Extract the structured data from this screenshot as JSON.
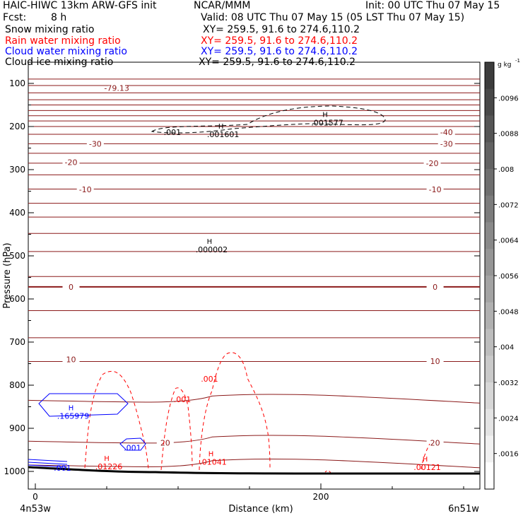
{
  "header": {
    "title_left": "HAIC-HIWC 13km ARW-GFS init",
    "title_center": "NCAR/MMM",
    "init": "Init: 00 UTC Thu 07 May 15",
    "fcst_label": "Fcst:",
    "fcst_value": "8 h",
    "valid": "Valid: 08 UTC Thu 07 May 15 (05 LST Thu 07 May 15)"
  },
  "fields": [
    {
      "name": "Snow mixing ratio",
      "xy": "XY= 259.5, 91.6 to 274.6,110.2",
      "color": "#000000"
    },
    {
      "name": "Rain water mixing ratio",
      "xy": "XY= 259.5, 91.6 to 274.6,110.2",
      "color": "#ff0000"
    },
    {
      "name": "Cloud water mixing ratio",
      "xy": "XY= 259.5, 91.6 to 274.6,110.2",
      "color": "#0000ff"
    },
    {
      "name": "Cloud ice mixing ratio",
      "xy": "XY= 259.5, 91.6 to 274.6,110.2",
      "color": "#000000"
    }
  ],
  "chart_data": {
    "type": "contour",
    "xlabel": "Distance (km)",
    "ylabel": "Pressure (hPa)",
    "x_range": [
      0,
      310
    ],
    "y_range": [
      50,
      1050
    ],
    "x_ticks": [
      0,
      200
    ],
    "y_ticks": [
      100,
      200,
      300,
      400,
      500,
      600,
      700,
      800,
      900,
      1000
    ],
    "left_end_label": "4n53w",
    "right_end_label": "6n51w",
    "colorbar": {
      "unit": "g kg",
      "unit_exponent": "-1",
      "tick_labels": [
        ".0096",
        ".0088",
        ".008",
        ".0072",
        ".0064",
        ".0056",
        ".0048",
        ".004",
        ".0032",
        ".0024",
        ".0016"
      ],
      "colors": [
        "#3c3c3c",
        "#484848",
        "#555555",
        "#626262",
        "#6f6f6f",
        "#7c7c7c",
        "#898989",
        "#969696",
        "#a3a3a3",
        "#b0b0b0",
        "#bdbdbd",
        "#cacaca",
        "#d7d7d7",
        "#e4e4e4",
        "#f1f1f1",
        "#ffffff"
      ]
    },
    "temperature_contours": {
      "color": "#8b1a1a",
      "levels_p": [
        90,
        105,
        122,
        138,
        150,
        163,
        175,
        187,
        200,
        218,
        240,
        262,
        285,
        312,
        345,
        378,
        410,
        448,
        490,
        548,
        572,
        627,
        690,
        745,
        835,
        930,
        985
      ],
      "labels": [
        {
          "text": "-79.13",
          "x": 57,
          "p": 111
        },
        {
          "text": "-40",
          "x": 288,
          "p": 213
        },
        {
          "text": "-30",
          "x": 42,
          "p": 240
        },
        {
          "text": "-30",
          "x": 288,
          "p": 240
        },
        {
          "text": "-20",
          "x": 25,
          "p": 283
        },
        {
          "text": "-20",
          "x": 278,
          "p": 285
        },
        {
          "text": "-10",
          "x": 35,
          "p": 346
        },
        {
          "text": "-10",
          "x": 280,
          "p": 346
        },
        {
          "text": "0",
          "x": 25,
          "p": 572
        },
        {
          "text": "0",
          "x": 280,
          "p": 572
        },
        {
          "text": "10",
          "x": 25,
          "p": 740
        },
        {
          "text": "10",
          "x": 280,
          "p": 744
        },
        {
          "text": "20",
          "x": 91,
          "p": 934
        },
        {
          "text": "20",
          "x": 280,
          "p": 934
        }
      ]
    },
    "maxima": [
      {
        "label": "H",
        "value": ".001601",
        "x": 130,
        "p": 205,
        "color": "#000000"
      },
      {
        "label": "H",
        "value": ".001577",
        "x": 203,
        "p": 178,
        "color": "#000000"
      },
      {
        "label": "H",
        "value": ".000002",
        "x": 122,
        "p": 472,
        "color": "#000000"
      },
      {
        "label": "H",
        "value": ".165979",
        "x": 25,
        "p": 858,
        "color": "#0000ff"
      },
      {
        "label": "H",
        "value": ".01226",
        "x": 50,
        "p": 975,
        "color": "#ff0000"
      },
      {
        "label": "H",
        "value": ".01041",
        "x": 123,
        "p": 965,
        "color": "#ff0000"
      },
      {
        "label": "H",
        "value": ".00121",
        "x": 273,
        "p": 977,
        "color": "#ff0000"
      }
    ],
    "contour_labels": [
      {
        "text": ".001",
        "x": 96,
        "p": 213,
        "color": "#000000"
      },
      {
        "text": ".001",
        "x": 122,
        "p": 785,
        "color": "#ff0000"
      },
      {
        "text": ".001",
        "x": 103,
        "p": 833,
        "color": "#ff0000"
      },
      {
        "text": ".001",
        "x": 68,
        "p": 945,
        "color": "#0000ff"
      },
      {
        "text": ".001",
        "x": 19,
        "p": 992,
        "color": "#0000ff"
      }
    ]
  }
}
